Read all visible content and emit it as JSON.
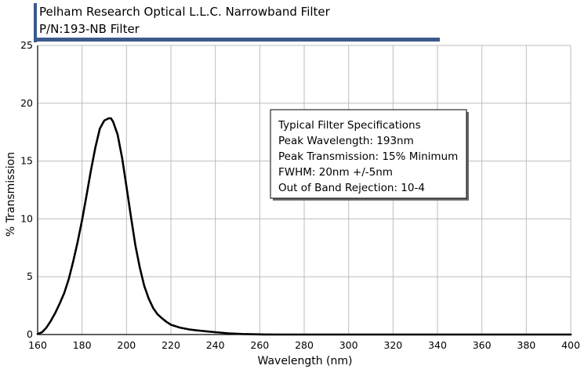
{
  "chart_data": {
    "type": "line",
    "title": "Pelham Research Optical L.L.C. Narrowband Filter",
    "subtitle": "P/N:193-NB Filter",
    "xlabel": "Wavelength (nm)",
    "ylabel": "% Transmission",
    "xlim": [
      160,
      400
    ],
    "ylim": [
      0,
      25
    ],
    "xticks": [
      160,
      180,
      200,
      220,
      240,
      260,
      280,
      300,
      320,
      340,
      360,
      380,
      400
    ],
    "yticks": [
      0,
      5,
      10,
      15,
      20,
      25
    ],
    "grid": true,
    "accent_color": "#3a5a8c",
    "series": [
      {
        "x": [
          160,
          162,
          164,
          166,
          168,
          170,
          172,
          174,
          176,
          178,
          180,
          182,
          184,
          186,
          188,
          190,
          192,
          193,
          194,
          196,
          198,
          200,
          202,
          204,
          206,
          208,
          210,
          212,
          214,
          216,
          218,
          220,
          224,
          228,
          232,
          236,
          240,
          246,
          252,
          258,
          262,
          270,
          300,
          350,
          400
        ],
        "y": [
          0.05,
          0.2,
          0.6,
          1.2,
          1.9,
          2.7,
          3.6,
          4.8,
          6.3,
          8.0,
          9.9,
          12.0,
          14.2,
          16.2,
          17.8,
          18.5,
          18.7,
          18.7,
          18.4,
          17.3,
          15.3,
          12.8,
          10.2,
          7.7,
          5.8,
          4.2,
          3.1,
          2.3,
          1.75,
          1.4,
          1.1,
          0.85,
          0.6,
          0.45,
          0.35,
          0.28,
          0.2,
          0.1,
          0.05,
          0.02,
          0.01,
          0.0,
          0.0,
          0.0,
          0.0
        ]
      }
    ]
  },
  "spec_box": {
    "lines": [
      "Typical Filter Specifications",
      "Peak Wavelength: 193nm",
      "Peak Transmission: 15% Minimum",
      "FWHM: 20nm +/-5nm",
      "Out of Band Rejection: 10-4"
    ]
  }
}
